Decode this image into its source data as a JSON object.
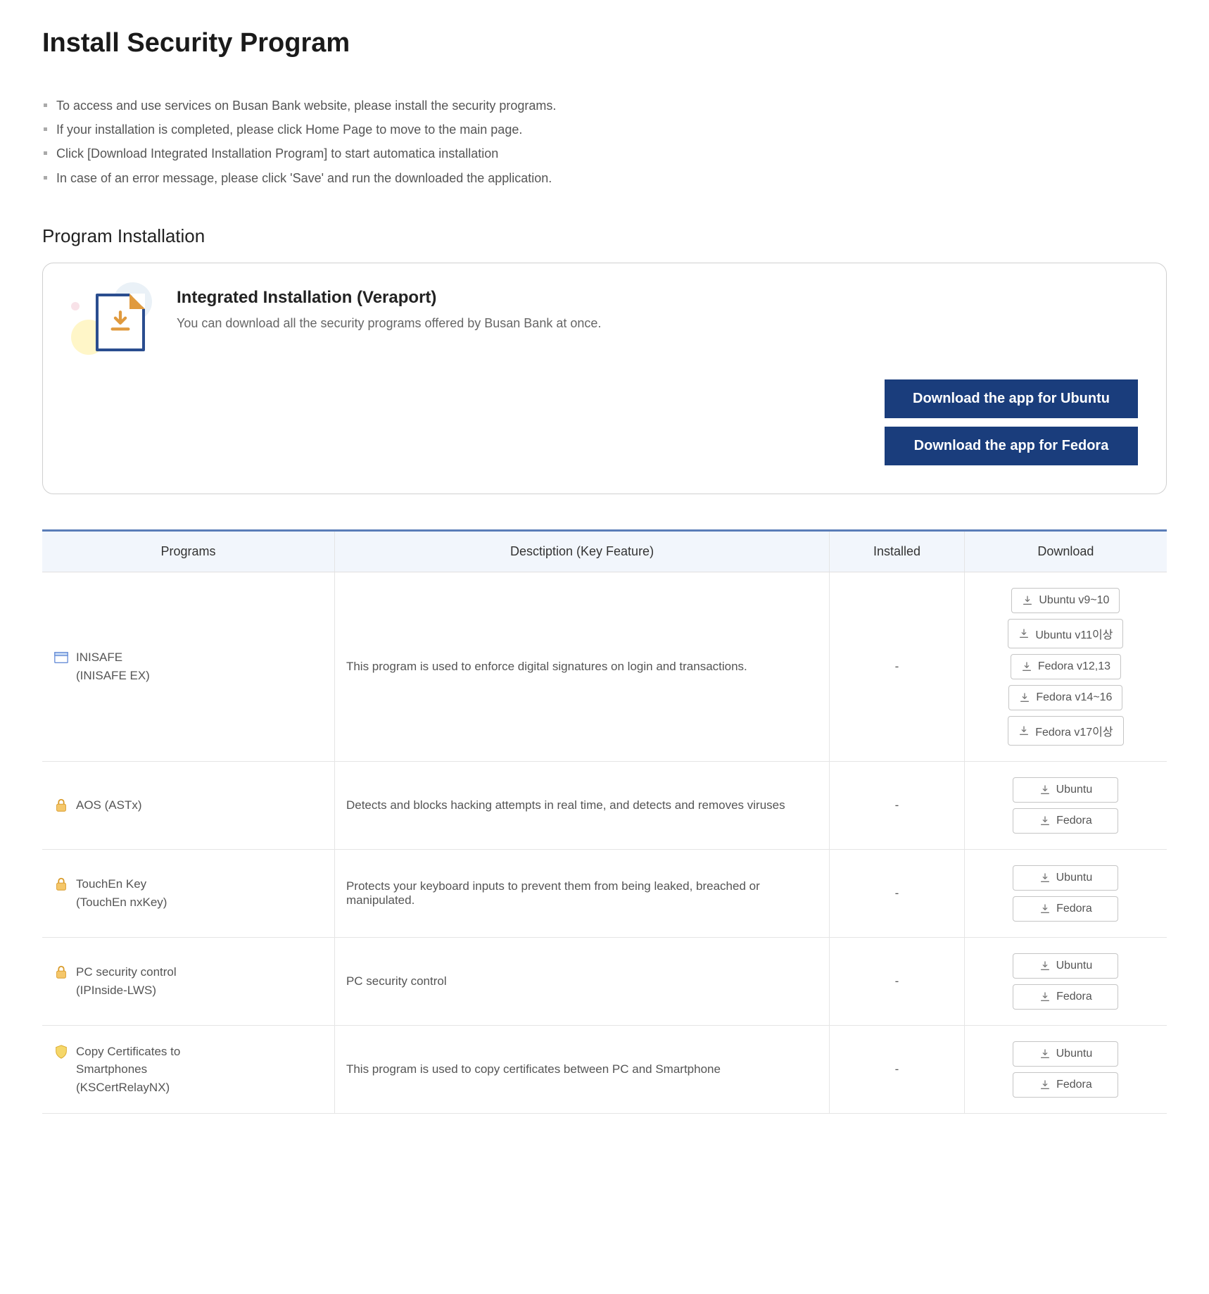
{
  "page": {
    "title": "Install Security Program",
    "intro": [
      "To access and use services on Busan Bank website, please install the security programs.",
      "If your installation is completed, please click Home Page to move to the main page.",
      "Click [Download Integrated Installation Program] to start automatica installation",
      "In case of an error message, please click 'Save' and run the downloaded the application."
    ],
    "section_heading": "Program Installation"
  },
  "integrated": {
    "title": "Integrated Installation (Veraport)",
    "desc": "You can download all the security programs offered by Busan Bank at once.",
    "btn_ubuntu": "Download the app for Ubuntu",
    "btn_fedora": "Download the app for Fedora",
    "colors": {
      "button_bg": "#1a3d7c",
      "file_border": "#2a4d8f",
      "arrow": "#e09a3e"
    }
  },
  "table": {
    "headers": {
      "programs": "Programs",
      "desc": "Desctiption (Key Feature)",
      "installed": "Installed",
      "download": "Download"
    },
    "rows": [
      {
        "icon": "window",
        "name_lines": [
          "INISAFE",
          "(INISAFE EX)"
        ],
        "desc": "This program is used to enforce digital signatures on login and transactions.",
        "installed": "-",
        "downloads": [
          "Ubuntu v9~10",
          "Ubuntu v11이상",
          "Fedora v12,13",
          "Fedora v14~16",
          "Fedora v17이상"
        ]
      },
      {
        "icon": "lock",
        "name_lines": [
          "AOS (ASTx)"
        ],
        "desc": "Detects and blocks hacking attempts in real time, and detects and removes viruses",
        "installed": "-",
        "downloads": [
          "Ubuntu",
          "Fedora"
        ]
      },
      {
        "icon": "lock",
        "name_lines": [
          "TouchEn Key",
          "(TouchEn nxKey)"
        ],
        "desc": "Protects your keyboard inputs to prevent them from being leaked, breached or manipulated.",
        "installed": "-",
        "downloads": [
          "Ubuntu",
          "Fedora"
        ]
      },
      {
        "icon": "lock",
        "name_lines": [
          "PC security control",
          "(IPInside-LWS)"
        ],
        "desc": "PC security control",
        "installed": "-",
        "downloads": [
          "Ubuntu",
          "Fedora"
        ]
      },
      {
        "icon": "shield",
        "name_lines": [
          "Copy Certificates to",
          "Smartphones",
          "(KSCertRelayNX)"
        ],
        "desc": "This program is used to copy certificates between PC and Smartphone",
        "installed": "-",
        "downloads": [
          "Ubuntu",
          "Fedora"
        ]
      }
    ]
  },
  "style": {
    "table_border_top": "#5a7db8",
    "thead_bg": "#f2f6fc",
    "download_icon_color": "#777"
  }
}
